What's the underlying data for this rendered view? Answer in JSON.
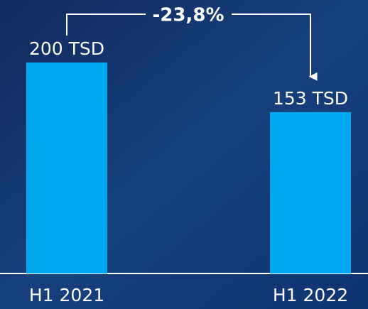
{
  "chart_data": {
    "type": "bar",
    "categories": [
      "H1 2021",
      "H1 2022"
    ],
    "values": [
      200,
      153
    ],
    "value_labels": [
      "200 TSD",
      "153 TSD"
    ],
    "color": "#00a8f0",
    "annotation": "-23,8%"
  }
}
